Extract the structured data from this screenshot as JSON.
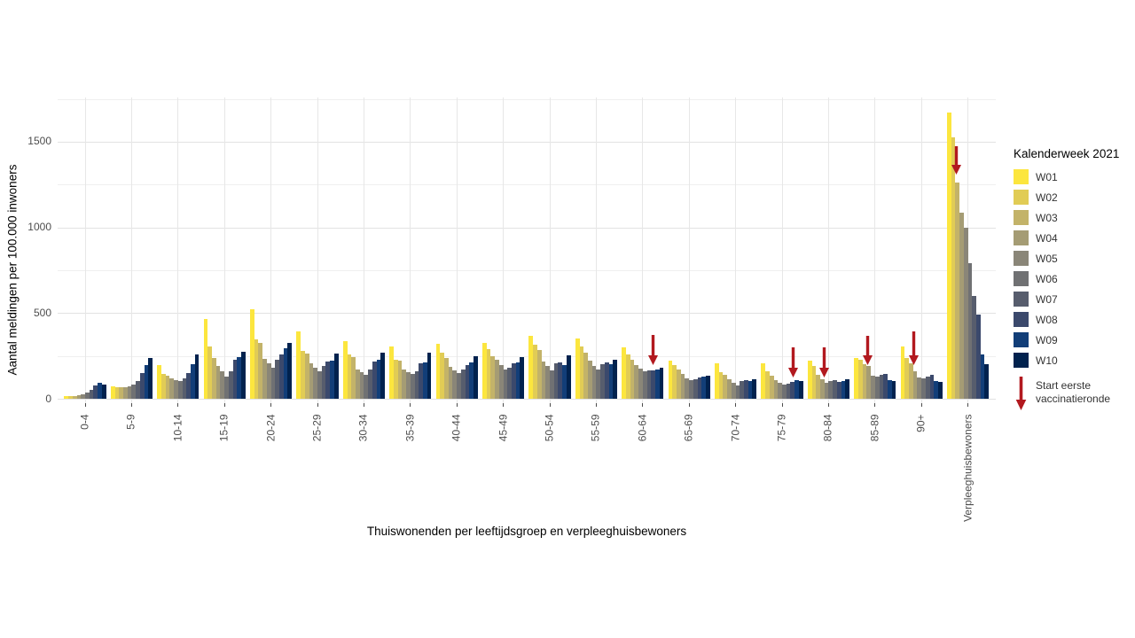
{
  "chart_data": {
    "type": "bar",
    "title": "",
    "xlabel": "Thuiswonenden per leeftijdsgroep en verpleeghuisbewoners",
    "ylabel": "Aantal meldingen per 100.000 inwoners",
    "categories": [
      "0-4",
      "5-9",
      "10-14",
      "15-19",
      "20-24",
      "25-29",
      "30-34",
      "35-39",
      "40-44",
      "45-49",
      "50-54",
      "55-59",
      "60-64",
      "65-69",
      "70-74",
      "75-79",
      "80-84",
      "85-89",
      "90+",
      "Verpleeghuisbewoners"
    ],
    "series": [
      {
        "name": "W01",
        "color": "#fce63e",
        "values": [
          15,
          70,
          195,
          465,
          520,
          395,
          335,
          305,
          320,
          325,
          365,
          350,
          300,
          220,
          205,
          205,
          220,
          240,
          305,
          1670
        ]
      },
      {
        "name": "W02",
        "color": "#e1cc55",
        "values": [
          15,
          68,
          145,
          305,
          345,
          280,
          260,
          230,
          270,
          290,
          315,
          305,
          260,
          195,
          155,
          160,
          190,
          225,
          240,
          1525
        ]
      },
      {
        "name": "W03",
        "color": "#c3b369",
        "values": [
          18,
          66,
          135,
          240,
          325,
          265,
          245,
          220,
          240,
          250,
          285,
          270,
          230,
          170,
          140,
          135,
          140,
          200,
          205,
          1260
        ]
      },
      {
        "name": "W04",
        "color": "#a59c74",
        "values": [
          22,
          66,
          120,
          190,
          235,
          205,
          170,
          170,
          185,
          225,
          215,
          220,
          195,
          145,
          115,
          110,
          115,
          190,
          160,
          1085
        ]
      },
      {
        "name": "W05",
        "color": "#8a8678",
        "values": [
          28,
          70,
          110,
          160,
          205,
          180,
          155,
          155,
          165,
          195,
          190,
          190,
          175,
          120,
          95,
          95,
          95,
          135,
          125,
          1000
        ]
      },
      {
        "name": "W06",
        "color": "#707173",
        "values": [
          36,
          85,
          105,
          130,
          180,
          160,
          140,
          145,
          150,
          170,
          165,
          170,
          160,
          110,
          80,
          85,
          105,
          130,
          120,
          790
        ]
      },
      {
        "name": "W07",
        "color": "#575d6d",
        "values": [
          50,
          105,
          120,
          160,
          225,
          190,
          170,
          160,
          170,
          180,
          205,
          200,
          165,
          115,
          105,
          90,
          110,
          140,
          130,
          600
        ]
      },
      {
        "name": "W08",
        "color": "#3b496c",
        "values": [
          78,
          150,
          150,
          225,
          260,
          215,
          215,
          205,
          195,
          205,
          210,
          210,
          165,
          125,
          110,
          100,
          100,
          145,
          140,
          490
        ]
      },
      {
        "name": "W09",
        "color": "#123e78",
        "values": [
          93,
          195,
          200,
          245,
          295,
          220,
          225,
          210,
          210,
          210,
          195,
          200,
          170,
          130,
          105,
          110,
          105,
          110,
          105,
          260
        ]
      },
      {
        "name": "W10",
        "color": "#01224e",
        "values": [
          85,
          240,
          260,
          275,
          325,
          265,
          270,
          270,
          250,
          245,
          255,
          230,
          180,
          135,
          115,
          105,
          115,
          105,
          100,
          200
        ]
      }
    ],
    "ylim": [
      0,
      1760
    ],
    "yticks": [
      0,
      500,
      1000,
      1500
    ],
    "yticks_minor": [
      250,
      750,
      1250,
      1750
    ],
    "grid": true,
    "legend_position": "right",
    "arrow_color": "#b2191f",
    "arrows": [
      {
        "category": "60-64",
        "x_frac": 0.748,
        "tip": 195,
        "tail": 370
      },
      {
        "category": "75-79",
        "x_frac": 0.775,
        "tip": 122,
        "tail": 300
      },
      {
        "category": "80-84",
        "x_frac": 0.386,
        "tip": 122,
        "tail": 300
      },
      {
        "category": "85-89",
        "x_frac": 0.314,
        "tip": 195,
        "tail": 365
      },
      {
        "category": "90+",
        "x_frac": 0.32,
        "tip": 200,
        "tail": 395
      },
      {
        "category": "Verpleeghuisbewoners",
        "x_frac": 0.233,
        "tip": 1310,
        "tail": 1475
      }
    ]
  },
  "titles": {
    "y_axis": "Aantal meldingen per 100.000 inwoners",
    "x_axis": "Thuiswonenden per leeftijdsgroep en verpleeghuisbewoners"
  },
  "legend": {
    "title": "Kalenderweek 2021",
    "note_lines": [
      "Start eerste",
      "vaccinatieronde"
    ]
  }
}
